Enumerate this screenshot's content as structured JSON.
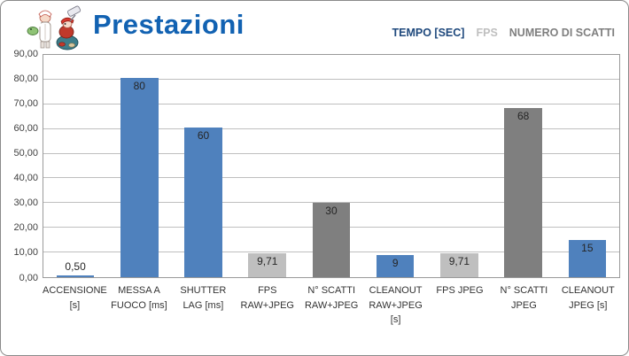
{
  "header": {
    "title": "Prestazioni",
    "title_color": "#1262b2"
  },
  "legend": {
    "items": [
      {
        "label": "TEMPO [SEC]",
        "text_color": "#1f497d"
      },
      {
        "label": "FPS",
        "text_color": "#bfbfbf"
      },
      {
        "label": "NUMERO DI SCATTI",
        "text_color": "#7f7f7f"
      }
    ]
  },
  "chart_data": {
    "type": "bar",
    "title": "Prestazioni",
    "categories": [
      "ACCENSIONE [s]",
      "MESSA A FUOCO [ms]",
      "SHUTTER LAG [ms]",
      "FPS RAW+JPEG",
      "N° SCATTI RAW+JPEG",
      "CLEANOUT RAW+JPEG [s]",
      "FPS JPEG",
      "N° SCATTI JPEG",
      "CLEANOUT JPEG [s]"
    ],
    "category_lines": [
      [
        "ACCENSIONE",
        "[s]"
      ],
      [
        "MESSA A",
        "FUOCO [ms]"
      ],
      [
        "SHUTTER",
        "LAG [ms]"
      ],
      [
        "FPS",
        "RAW+JPEG"
      ],
      [
        "N° SCATTI",
        "RAW+JPEG"
      ],
      [
        "CLEANOUT",
        "RAW+JPEG",
        "[s]"
      ],
      [
        "FPS JPEG"
      ],
      [
        "N° SCATTI",
        "JPEG"
      ],
      [
        "CLEANOUT",
        "JPEG [s]"
      ]
    ],
    "values": [
      0.5,
      80,
      60,
      9.71,
      30,
      9,
      9.71,
      68,
      15
    ],
    "value_labels": [
      "0,50",
      "80",
      "60",
      "9,71",
      "30",
      "9",
      "9,71",
      "68",
      "15"
    ],
    "series": [
      {
        "name": "TEMPO [SEC]",
        "color": "#4f81bd"
      },
      {
        "name": "FPS",
        "color": "#bfbfbf"
      },
      {
        "name": "NUMERO DI SCATTI",
        "color": "#7f7f7f"
      }
    ],
    "bar_series": [
      0,
      0,
      0,
      1,
      2,
      0,
      1,
      2,
      0
    ],
    "ylim": [
      0,
      90
    ],
    "y_ticks": [
      "90,00",
      "80,00",
      "70,00",
      "60,00",
      "50,00",
      "40,00",
      "30,00",
      "20,00",
      "10,00",
      "0,00"
    ],
    "grid": true,
    "legend_position": "top-right",
    "xlabel": "",
    "ylabel": ""
  }
}
